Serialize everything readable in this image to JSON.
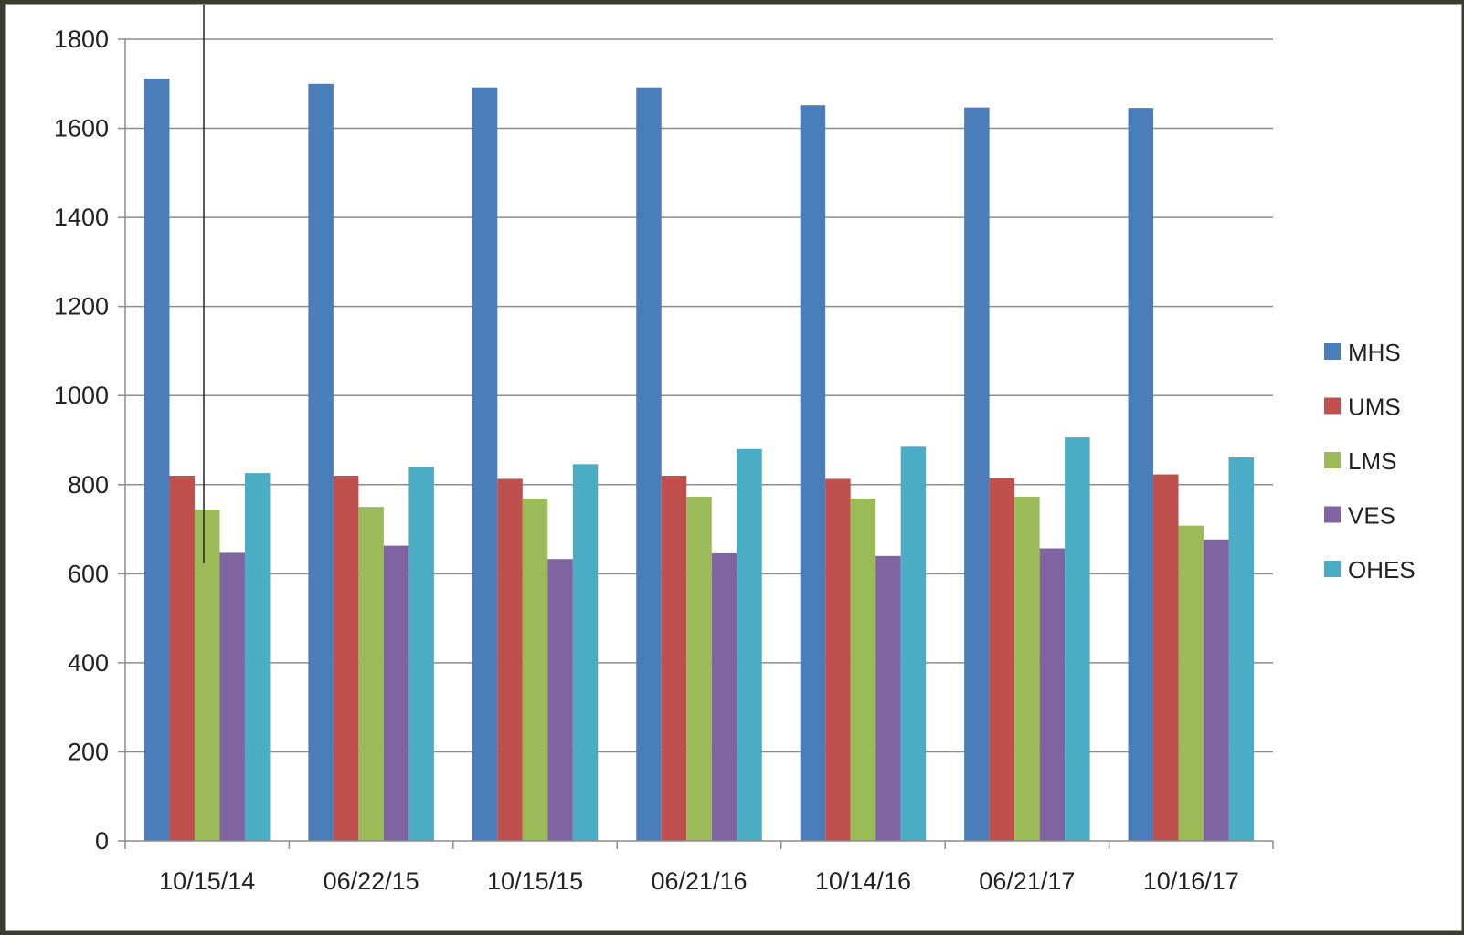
{
  "chart_data": {
    "type": "bar",
    "title": "",
    "xlabel": "",
    "ylabel": "",
    "ylim": [
      0,
      1800
    ],
    "ytick_step": 200,
    "yticks": [
      "0",
      "200",
      "400",
      "600",
      "800",
      "1000",
      "1200",
      "1400",
      "1600",
      "1800"
    ],
    "grid": true,
    "legend_position": "right",
    "categories": [
      "10/15/14",
      "06/22/15",
      "10/15/15",
      "06/21/16",
      "10/14/16",
      "06/21/17",
      "10/16/17"
    ],
    "series": [
      {
        "name": "MHS",
        "color": "#4a7ebb",
        "values": [
          1712,
          1700,
          1692,
          1692,
          1652,
          1647,
          1646
        ]
      },
      {
        "name": "UMS",
        "color": "#c0504d",
        "values": [
          820,
          820,
          813,
          820,
          813,
          814,
          823
        ]
      },
      {
        "name": "LMS",
        "color": "#9bbb59",
        "values": [
          744,
          750,
          769,
          773,
          769,
          773,
          708
        ]
      },
      {
        "name": "VES",
        "color": "#8064a2",
        "values": [
          647,
          663,
          633,
          646,
          640,
          657,
          677
        ]
      },
      {
        "name": "OHES",
        "color": "#4bacc6",
        "values": [
          826,
          840,
          846,
          880,
          885,
          906,
          861
        ]
      }
    ]
  }
}
